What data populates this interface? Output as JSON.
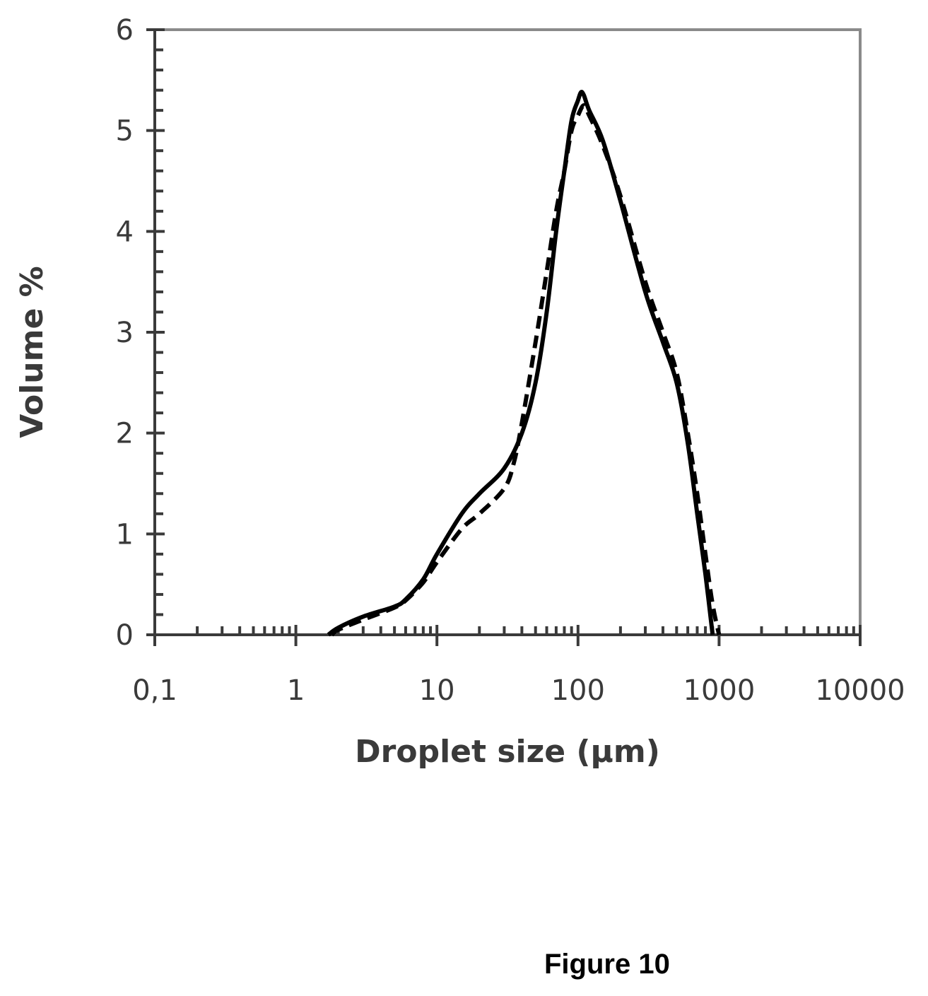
{
  "colors": {
    "axis": "#3a3a3a",
    "series": "#000000",
    "background": "#ffffff"
  },
  "caption": "Figure 10",
  "chart_data": {
    "type": "line",
    "title": "",
    "xlabel": "Droplet size (µm)",
    "ylabel": "Volume %",
    "x_scale": "log",
    "xlim": [
      0.1,
      10000
    ],
    "ylim": [
      0,
      6
    ],
    "x_ticks": [
      0.1,
      1,
      10,
      100,
      1000,
      10000
    ],
    "x_tick_labels": [
      "0,1",
      "1",
      "10",
      "100",
      "1000",
      "10000"
    ],
    "y_ticks": [
      0,
      1,
      2,
      3,
      4,
      5,
      6
    ],
    "y_tick_labels": [
      "0",
      "1",
      "2",
      "3",
      "4",
      "5",
      "6"
    ],
    "y_minor_step": 0.2,
    "grid": false,
    "legend": "none",
    "series": [
      {
        "style": "solid",
        "x": [
          1.7,
          2,
          3,
          5,
          6,
          8,
          10,
          15,
          20,
          30,
          40,
          50,
          60,
          70,
          80,
          90,
          100,
          105,
          110,
          120,
          150,
          200,
          300,
          400,
          500,
          600,
          700,
          800,
          900
        ],
        "y": [
          0,
          0.07,
          0.18,
          0.28,
          0.35,
          0.55,
          0.8,
          1.2,
          1.4,
          1.65,
          2.0,
          2.5,
          3.2,
          4.0,
          4.6,
          5.1,
          5.3,
          5.38,
          5.35,
          5.2,
          4.9,
          4.3,
          3.4,
          2.9,
          2.5,
          1.9,
          1.2,
          0.6,
          0
        ]
      },
      {
        "style": "dashed",
        "x": [
          1.8,
          2,
          3,
          5,
          6,
          8,
          10,
          15,
          20,
          30,
          35,
          40,
          50,
          60,
          70,
          80,
          90,
          100,
          110,
          120,
          150,
          200,
          300,
          400,
          500,
          600,
          700,
          800,
          900,
          1000
        ],
        "y": [
          0,
          0.05,
          0.15,
          0.27,
          0.34,
          0.52,
          0.72,
          1.05,
          1.2,
          1.45,
          1.7,
          2.1,
          2.9,
          3.6,
          4.2,
          4.6,
          5.0,
          5.15,
          5.25,
          5.15,
          4.85,
          4.35,
          3.5,
          3.0,
          2.6,
          2.0,
          1.4,
          0.8,
          0.3,
          0
        ]
      }
    ]
  }
}
